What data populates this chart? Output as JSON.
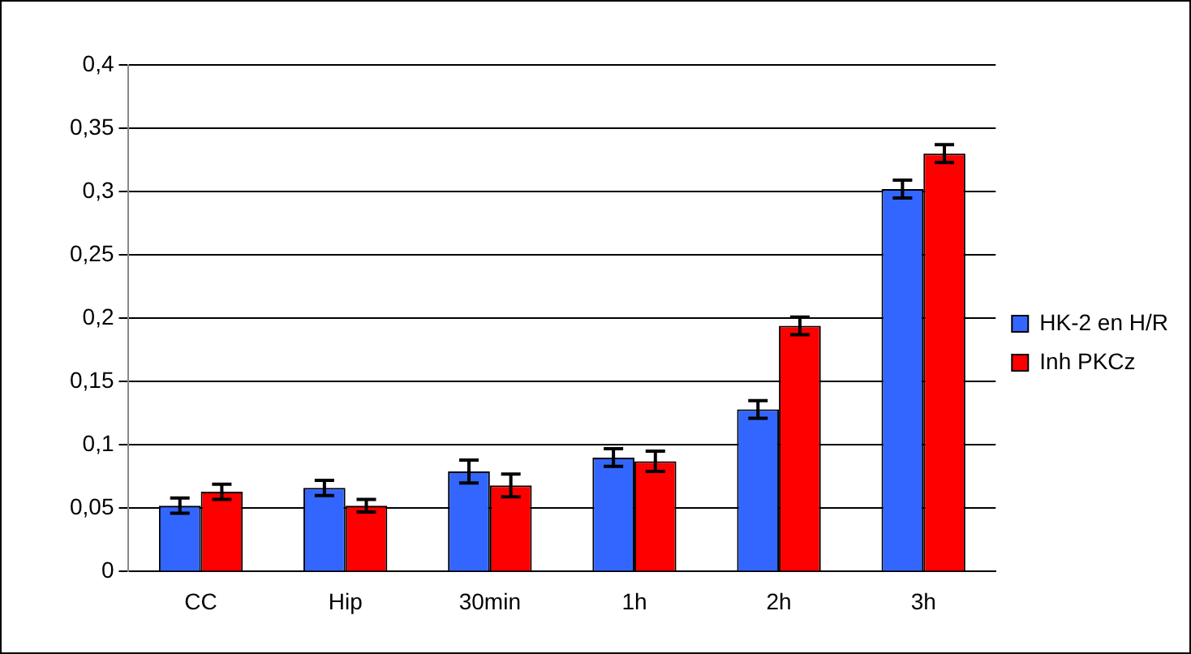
{
  "chart_data": {
    "type": "bar",
    "categories": [
      "CC",
      "Hip",
      "30min",
      "1h",
      "2h",
      "3h"
    ],
    "series": [
      {
        "name": "HK-2 en H/R",
        "color": "#3366ff",
        "values": [
          0.052,
          0.066,
          0.079,
          0.09,
          0.128,
          0.302
        ],
        "errors": [
          0.006,
          0.006,
          0.009,
          0.007,
          0.007,
          0.007
        ]
      },
      {
        "name": "Inh PKCz",
        "color": "#ff0000",
        "values": [
          0.063,
          0.052,
          0.068,
          0.087,
          0.194,
          0.33
        ],
        "errors": [
          0.006,
          0.005,
          0.009,
          0.008,
          0.007,
          0.007
        ]
      }
    ],
    "ylim": [
      0,
      0.4
    ],
    "yticks": [
      {
        "value": 0,
        "label": "0"
      },
      {
        "value": 0.05,
        "label": "0,05"
      },
      {
        "value": 0.1,
        "label": "0,1"
      },
      {
        "value": 0.15,
        "label": "0,15"
      },
      {
        "value": 0.2,
        "label": "0,2"
      },
      {
        "value": 0.25,
        "label": "0,25"
      },
      {
        "value": 0.3,
        "label": "0,3"
      },
      {
        "value": 0.35,
        "label": "0,35"
      },
      {
        "value": 0.4,
        "label": "0,4"
      }
    ],
    "grid": "y",
    "legend": "right"
  }
}
